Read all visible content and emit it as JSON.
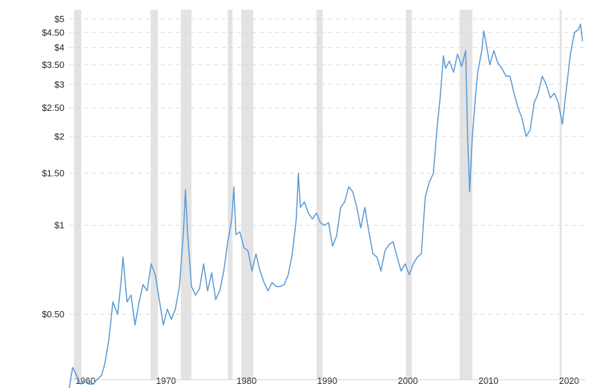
{
  "chart_data": {
    "type": "line",
    "title": "",
    "xlabel": "",
    "ylabel": "",
    "y_scale": "log",
    "ylim": [
      0.3,
      5.2
    ],
    "xlim": [
      "1958-01-01",
      "2022-01-01"
    ],
    "grid": "horizontal dashed",
    "colors": {
      "series": "#5b9bd5",
      "recession": "#e3e3e3",
      "grid": "#d9d9d9",
      "text": "#222222"
    },
    "y_ticks": [
      {
        "value": 0.5,
        "label": "$0.50"
      },
      {
        "value": 1,
        "label": "$1"
      },
      {
        "value": 1.5,
        "label": "$1.50"
      },
      {
        "value": 2,
        "label": "$2"
      },
      {
        "value": 2.5,
        "label": "$2.50"
      },
      {
        "value": 3,
        "label": "$3"
      },
      {
        "value": 3.5,
        "label": "$3.50"
      },
      {
        "value": 4,
        "label": "$4"
      },
      {
        "value": 4.5,
        "label": "$4.50"
      },
      {
        "value": 5,
        "label": "$5"
      }
    ],
    "x_ticks": [
      {
        "value": "1960-01-01",
        "label": "1960"
      },
      {
        "value": "1970-01-01",
        "label": "1970"
      },
      {
        "value": "1980-01-01",
        "label": "1980"
      },
      {
        "value": "1990-01-01",
        "label": "1990"
      },
      {
        "value": "2000-01-01",
        "label": "2000"
      },
      {
        "value": "2010-01-01",
        "label": "2010"
      },
      {
        "value": "2020-01-01",
        "label": "2020"
      }
    ],
    "recession_periods": [
      [
        "1958-08-01",
        "1959-07-01"
      ],
      [
        "1968-02-01",
        "1969-01-01"
      ],
      [
        "1971-11-01",
        "1973-03-01"
      ],
      [
        "1977-09-01",
        "1978-04-01"
      ],
      [
        "1979-05-01",
        "1980-11-01"
      ],
      [
        "1988-09-01",
        "1989-06-01"
      ],
      [
        "1999-10-01",
        "2000-07-01"
      ],
      [
        "2006-06-01",
        "2008-01-01"
      ],
      [
        "2018-11-01",
        "2019-02-01"
      ]
    ],
    "series": [
      {
        "points": [
          [
            "1958-01-01",
            0.28
          ],
          [
            "1958-06-01",
            0.33
          ],
          [
            "1958-12-01",
            0.31
          ],
          [
            "1959-06-01",
            0.29
          ],
          [
            "1960-01-01",
            0.3
          ],
          [
            "1960-06-01",
            0.29
          ],
          [
            "1961-01-01",
            0.29
          ],
          [
            "1961-06-01",
            0.3
          ],
          [
            "1962-01-01",
            0.31
          ],
          [
            "1962-06-01",
            0.34
          ],
          [
            "1962-12-01",
            0.41
          ],
          [
            "1963-06-01",
            0.55
          ],
          [
            "1964-01-01",
            0.5
          ],
          [
            "1964-06-01",
            0.64
          ],
          [
            "1964-09-01",
            0.78
          ],
          [
            "1965-03-01",
            0.55
          ],
          [
            "1965-09-01",
            0.58
          ],
          [
            "1966-03-01",
            0.46
          ],
          [
            "1966-09-01",
            0.55
          ],
          [
            "1967-03-01",
            0.63
          ],
          [
            "1967-09-01",
            0.6
          ],
          [
            "1968-03-01",
            0.74
          ],
          [
            "1968-09-01",
            0.68
          ],
          [
            "1969-03-01",
            0.56
          ],
          [
            "1969-09-01",
            0.46
          ],
          [
            "1970-03-01",
            0.52
          ],
          [
            "1970-09-01",
            0.48
          ],
          [
            "1971-03-01",
            0.52
          ],
          [
            "1971-09-01",
            0.62
          ],
          [
            "1972-03-01",
            0.95
          ],
          [
            "1972-06-01",
            1.32
          ],
          [
            "1972-09-01",
            0.95
          ],
          [
            "1973-03-01",
            0.62
          ],
          [
            "1973-09-01",
            0.58
          ],
          [
            "1974-03-01",
            0.61
          ],
          [
            "1974-09-01",
            0.74
          ],
          [
            "1975-03-01",
            0.6
          ],
          [
            "1975-09-01",
            0.69
          ],
          [
            "1976-03-01",
            0.56
          ],
          [
            "1976-09-01",
            0.6
          ],
          [
            "1977-03-01",
            0.7
          ],
          [
            "1977-09-01",
            0.88
          ],
          [
            "1978-03-01",
            1.05
          ],
          [
            "1978-06-01",
            1.35
          ],
          [
            "1978-09-01",
            0.93
          ],
          [
            "1979-03-01",
            0.95
          ],
          [
            "1979-09-01",
            0.84
          ],
          [
            "1980-03-01",
            0.82
          ],
          [
            "1980-09-01",
            0.7
          ],
          [
            "1981-03-01",
            0.8
          ],
          [
            "1981-09-01",
            0.7
          ],
          [
            "1982-03-01",
            0.64
          ],
          [
            "1982-09-01",
            0.6
          ],
          [
            "1983-03-01",
            0.64
          ],
          [
            "1983-09-01",
            0.62
          ],
          [
            "1984-03-01",
            0.62
          ],
          [
            "1984-09-01",
            0.63
          ],
          [
            "1985-03-01",
            0.68
          ],
          [
            "1985-09-01",
            0.8
          ],
          [
            "1986-03-01",
            1.05
          ],
          [
            "1986-06-01",
            1.5
          ],
          [
            "1986-09-01",
            1.15
          ],
          [
            "1987-03-01",
            1.2
          ],
          [
            "1987-09-01",
            1.1
          ],
          [
            "1988-03-01",
            1.05
          ],
          [
            "1988-09-01",
            1.1
          ],
          [
            "1989-03-01",
            1.02
          ],
          [
            "1989-09-01",
            1.0
          ],
          [
            "1990-03-01",
            1.02
          ],
          [
            "1990-09-01",
            0.85
          ],
          [
            "1991-03-01",
            0.92
          ],
          [
            "1991-09-01",
            1.15
          ],
          [
            "1992-03-01",
            1.2
          ],
          [
            "1992-09-01",
            1.35
          ],
          [
            "1993-03-01",
            1.3
          ],
          [
            "1993-09-01",
            1.15
          ],
          [
            "1994-03-01",
            0.98
          ],
          [
            "1994-09-01",
            1.15
          ],
          [
            "1995-03-01",
            0.95
          ],
          [
            "1995-09-01",
            0.8
          ],
          [
            "1996-03-01",
            0.78
          ],
          [
            "1996-09-01",
            0.7
          ],
          [
            "1997-03-01",
            0.82
          ],
          [
            "1997-09-01",
            0.86
          ],
          [
            "1998-03-01",
            0.88
          ],
          [
            "1998-09-01",
            0.78
          ],
          [
            "1999-03-01",
            0.7
          ],
          [
            "1999-09-01",
            0.74
          ],
          [
            "2000-03-01",
            0.68
          ],
          [
            "2000-09-01",
            0.74
          ],
          [
            "2001-03-01",
            0.78
          ],
          [
            "2001-09-01",
            0.8
          ],
          [
            "2002-03-01",
            1.25
          ],
          [
            "2002-09-01",
            1.4
          ],
          [
            "2003-03-01",
            1.5
          ],
          [
            "2003-09-01",
            2.2
          ],
          [
            "2004-01-01",
            2.7
          ],
          [
            "2004-06-01",
            3.75
          ],
          [
            "2004-09-01",
            3.4
          ],
          [
            "2005-03-01",
            3.6
          ],
          [
            "2005-09-01",
            3.3
          ],
          [
            "2006-03-01",
            3.8
          ],
          [
            "2006-09-01",
            3.45
          ],
          [
            "2007-03-01",
            3.9
          ],
          [
            "2007-06-01",
            2.0
          ],
          [
            "2007-09-01",
            1.3
          ],
          [
            "2008-01-01",
            2.0
          ],
          [
            "2008-06-01",
            2.8
          ],
          [
            "2008-09-01",
            3.3
          ],
          [
            "2009-03-01",
            3.9
          ],
          [
            "2009-06-01",
            4.55
          ],
          [
            "2009-09-01",
            4.2
          ],
          [
            "2010-03-01",
            3.5
          ],
          [
            "2010-09-01",
            3.9
          ],
          [
            "2011-03-01",
            3.55
          ],
          [
            "2011-09-01",
            3.4
          ],
          [
            "2012-03-01",
            3.2
          ],
          [
            "2012-09-01",
            3.2
          ],
          [
            "2013-03-01",
            2.8
          ],
          [
            "2013-09-01",
            2.5
          ],
          [
            "2014-03-01",
            2.3
          ],
          [
            "2014-09-01",
            2.0
          ],
          [
            "2015-03-01",
            2.1
          ],
          [
            "2015-09-01",
            2.6
          ],
          [
            "2016-03-01",
            2.8
          ],
          [
            "2016-09-01",
            3.2
          ],
          [
            "2017-03-01",
            3.0
          ],
          [
            "2017-09-01",
            2.7
          ],
          [
            "2018-03-01",
            2.8
          ],
          [
            "2018-09-01",
            2.6
          ],
          [
            "2019-03-01",
            2.2
          ],
          [
            "2019-09-01",
            2.9
          ],
          [
            "2020-03-01",
            3.8
          ],
          [
            "2020-09-01",
            4.5
          ],
          [
            "2021-03-01",
            4.6
          ],
          [
            "2021-06-01",
            4.8
          ],
          [
            "2021-09-01",
            4.2
          ]
        ]
      }
    ]
  }
}
